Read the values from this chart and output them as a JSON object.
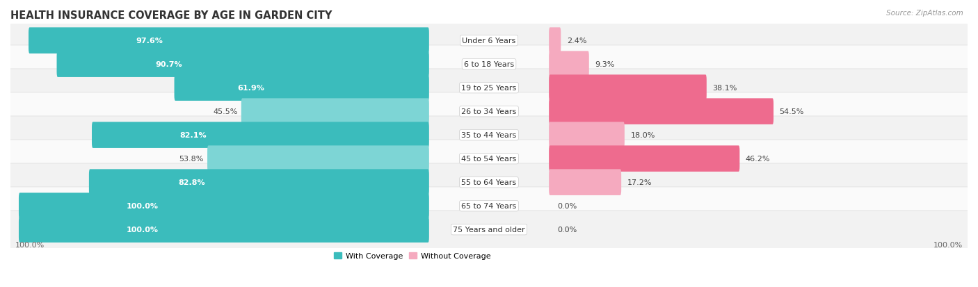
{
  "title": "HEALTH INSURANCE COVERAGE BY AGE IN GARDEN CITY",
  "source": "Source: ZipAtlas.com",
  "categories": [
    "Under 6 Years",
    "6 to 18 Years",
    "19 to 25 Years",
    "26 to 34 Years",
    "35 to 44 Years",
    "45 to 54 Years",
    "55 to 64 Years",
    "65 to 74 Years",
    "75 Years and older"
  ],
  "with_coverage": [
    97.6,
    90.7,
    61.9,
    45.5,
    82.1,
    53.8,
    82.8,
    100.0,
    100.0
  ],
  "without_coverage": [
    2.4,
    9.3,
    38.1,
    54.5,
    18.0,
    46.2,
    17.2,
    0.0,
    0.0
  ],
  "color_with_dark": "#3BBCBC",
  "color_with_light": "#7DD5D5",
  "color_without_dark": "#EE6B8E",
  "color_without_light": "#F5AABF",
  "with_dark_threshold": 60,
  "without_dark_threshold": 30,
  "bg_odd": "#F2F2F2",
  "bg_even": "#FAFAFA",
  "bg_color": "#FFFFFF",
  "axis_label_left": "100.0%",
  "axis_label_right": "100.0%",
  "legend_with": "With Coverage",
  "legend_without": "Without Coverage",
  "title_fontsize": 10.5,
  "source_fontsize": 7.5,
  "label_fontsize": 8,
  "bar_label_fontsize": 8,
  "category_fontsize": 8
}
